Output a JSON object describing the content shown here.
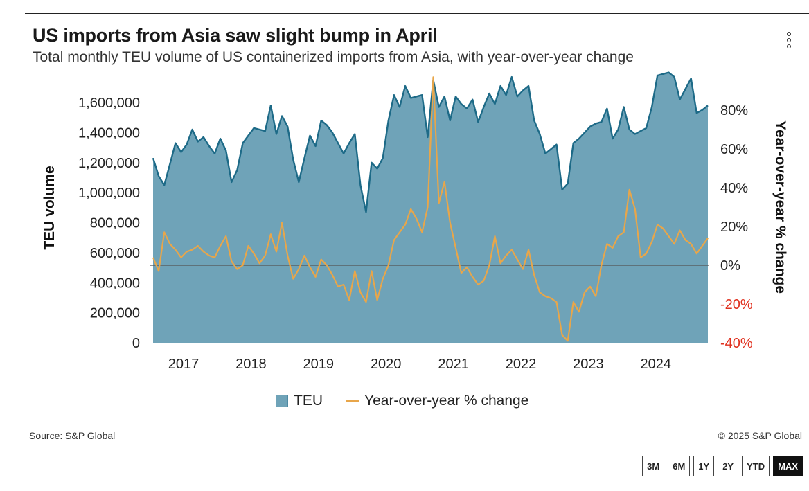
{
  "header": {
    "title": "US imports from Asia saw slight bump in April",
    "subtitle": "Total monthly TEU volume of US containerized imports from Asia, with year-over-year change"
  },
  "menu_icon": "vertical-ellipsis-icon",
  "legend": {
    "teu_label": "TEU",
    "yoy_label": "Year-over-year % change"
  },
  "footer": {
    "source": "Source: S&P Global",
    "copyright": "© 2025 S&P Global"
  },
  "range_buttons": [
    "3M",
    "6M",
    "1Y",
    "2Y",
    "YTD",
    "MAX"
  ],
  "active_range": "MAX",
  "colors": {
    "area_fill": "#6fa3b8",
    "area_line": "#1d6a87",
    "yoy_line": "#e8a64a",
    "negative_tick": "#e0301e",
    "zero_line": "#555555"
  },
  "chart_data": {
    "type": "area",
    "x_ticks": [
      "2017",
      "2018",
      "2019",
      "2020",
      "2021",
      "2022",
      "2023",
      "2024"
    ],
    "left_axis": {
      "label": "TEU volume",
      "ticks": [
        "0",
        "200,000",
        "400,000",
        "600,000",
        "800,000",
        "1,000,000",
        "1,200,000",
        "1,400,000",
        "1,600,000"
      ],
      "range": [
        0,
        1760000
      ]
    },
    "right_axis": {
      "label": "Year-over-year % change",
      "ticks": [
        "-40%",
        "-20%",
        "0%",
        "20%",
        "40%",
        "60%",
        "80%"
      ],
      "range": [
        -40,
        96
      ]
    },
    "grid": false,
    "legend_position": "bottom",
    "series": [
      {
        "name": "TEU",
        "type": "area",
        "axis": "left",
        "values": [
          1230000,
          1110000,
          1050000,
          1190000,
          1330000,
          1270000,
          1320000,
          1420000,
          1340000,
          1370000,
          1310000,
          1260000,
          1360000,
          1280000,
          1070000,
          1150000,
          1330000,
          1380000,
          1430000,
          1420000,
          1410000,
          1580000,
          1390000,
          1510000,
          1440000,
          1220000,
          1070000,
          1230000,
          1380000,
          1310000,
          1480000,
          1450000,
          1400000,
          1330000,
          1260000,
          1330000,
          1390000,
          1050000,
          870000,
          1200000,
          1160000,
          1230000,
          1480000,
          1650000,
          1570000,
          1710000,
          1630000,
          1640000,
          1650000,
          1370000,
          1750000,
          1570000,
          1640000,
          1480000,
          1640000,
          1590000,
          1560000,
          1620000,
          1470000,
          1570000,
          1660000,
          1590000,
          1710000,
          1650000,
          1770000,
          1640000,
          1680000,
          1710000,
          1480000,
          1390000,
          1260000,
          1290000,
          1320000,
          1020000,
          1060000,
          1330000,
          1360000,
          1400000,
          1440000,
          1460000,
          1470000,
          1560000,
          1360000,
          1420000,
          1570000,
          1420000,
          1390000,
          1410000,
          1430000,
          1570000,
          1780000,
          1790000,
          1800000,
          1770000,
          1620000,
          1690000,
          1760000,
          1530000,
          1550000,
          1580000
        ]
      },
      {
        "name": "Year-over-year % change",
        "type": "line",
        "axis": "right",
        "values": [
          4,
          -3,
          17,
          11,
          8,
          4,
          7,
          8,
          10,
          7,
          5,
          4,
          10,
          15,
          2,
          -2,
          0,
          10,
          6,
          1,
          5,
          16,
          7,
          22,
          5,
          -7,
          -2,
          5,
          -1,
          -6,
          3,
          0,
          -5,
          -11,
          -10,
          -18,
          -3,
          -14,
          -19,
          -3,
          -18,
          -7,
          0,
          13,
          17,
          21,
          29,
          24,
          17,
          30,
          97,
          32,
          43,
          22,
          9,
          -4,
          -1,
          -6,
          -10,
          -8,
          0,
          15,
          1,
          5,
          8,
          3,
          -2,
          8,
          -5,
          -14,
          -16,
          -17,
          -19,
          -36,
          -39,
          -19,
          -24,
          -14,
          -11,
          -16,
          0,
          11,
          9,
          15,
          17,
          39,
          29,
          4,
          6,
          12,
          21,
          19,
          15,
          11,
          18,
          13,
          11,
          6,
          10,
          14
        ]
      }
    ]
  }
}
